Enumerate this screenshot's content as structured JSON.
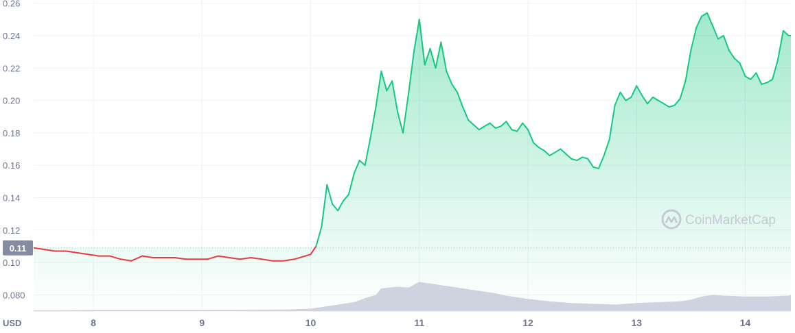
{
  "chart_data": {
    "type": "area",
    "currency_label": "USD",
    "current_price_label": "0.11",
    "current_price": 0.109,
    "watermark": "CoinMarketCap",
    "ylim": [
      0.07,
      0.262
    ],
    "xlim": [
      7.45,
      14.42
    ],
    "y_ticks": [
      {
        "value": 0.26,
        "label": "0.26"
      },
      {
        "value": 0.24,
        "label": "0.24"
      },
      {
        "value": 0.22,
        "label": "0.22"
      },
      {
        "value": 0.2,
        "label": "0.20"
      },
      {
        "value": 0.18,
        "label": "0.18"
      },
      {
        "value": 0.16,
        "label": "0.16"
      },
      {
        "value": 0.14,
        "label": "0.14"
      },
      {
        "value": 0.12,
        "label": "0.12"
      },
      {
        "value": 0.1,
        "label": "0.10"
      },
      {
        "value": 0.08,
        "label": "0.080"
      }
    ],
    "x_ticks": [
      {
        "value": 8,
        "label": "8"
      },
      {
        "value": 9,
        "label": "9"
      },
      {
        "value": 10,
        "label": "10"
      },
      {
        "value": 11,
        "label": "11"
      },
      {
        "value": 12,
        "label": "12"
      },
      {
        "value": 13,
        "label": "13"
      },
      {
        "value": 14,
        "label": "14"
      }
    ],
    "colors": {
      "up": "#16c784",
      "down": "#ea3943",
      "volume": "#cfd3e0",
      "grid": "#eff2f5",
      "badge": "#858ca2"
    },
    "grid": true,
    "series": [
      {
        "x": [
          7.45,
          7.55,
          7.65,
          7.75,
          7.85,
          7.95,
          8.05,
          8.15,
          8.25,
          8.35,
          8.45,
          8.55,
          8.65,
          8.75,
          8.85,
          8.95,
          9.05,
          9.15,
          9.25,
          9.35,
          9.45,
          9.55,
          9.65,
          9.75,
          9.85,
          9.95,
          10.0,
          10.05,
          10.1,
          10.15,
          10.2,
          10.25,
          10.3,
          10.35,
          10.4,
          10.45,
          10.5,
          10.55,
          10.6,
          10.65,
          10.7,
          10.75,
          10.8,
          10.85,
          10.9,
          10.95,
          11.0,
          11.05,
          11.1,
          11.15,
          11.2,
          11.25,
          11.3,
          11.35,
          11.4,
          11.45,
          11.5,
          11.55,
          11.6,
          11.65,
          11.7,
          11.75,
          11.8,
          11.85,
          11.9,
          11.95,
          12.0,
          12.05,
          12.1,
          12.15,
          12.2,
          12.25,
          12.3,
          12.35,
          12.4,
          12.45,
          12.5,
          12.55,
          12.6,
          12.65,
          12.7,
          12.75,
          12.8,
          12.85,
          12.9,
          12.95,
          13.0,
          13.05,
          13.1,
          13.15,
          13.2,
          13.25,
          13.3,
          13.35,
          13.4,
          13.45,
          13.5,
          13.55,
          13.6,
          13.65,
          13.7,
          13.75,
          13.8,
          13.85,
          13.9,
          13.95,
          14.0,
          14.05,
          14.1,
          14.15,
          14.2,
          14.25,
          14.3,
          14.35,
          14.4,
          14.42
        ],
        "y": [
          0.109,
          0.108,
          0.107,
          0.107,
          0.106,
          0.105,
          0.104,
          0.104,
          0.102,
          0.101,
          0.104,
          0.103,
          0.103,
          0.103,
          0.102,
          0.102,
          0.102,
          0.104,
          0.103,
          0.102,
          0.103,
          0.102,
          0.101,
          0.101,
          0.102,
          0.104,
          0.105,
          0.11,
          0.122,
          0.148,
          0.136,
          0.132,
          0.138,
          0.142,
          0.155,
          0.163,
          0.16,
          0.177,
          0.196,
          0.218,
          0.206,
          0.212,
          0.193,
          0.18,
          0.204,
          0.23,
          0.25,
          0.222,
          0.232,
          0.22,
          0.236,
          0.218,
          0.21,
          0.205,
          0.196,
          0.188,
          0.185,
          0.182,
          0.184,
          0.186,
          0.183,
          0.184,
          0.187,
          0.182,
          0.181,
          0.186,
          0.182,
          0.174,
          0.171,
          0.169,
          0.166,
          0.168,
          0.17,
          0.167,
          0.164,
          0.163,
          0.165,
          0.164,
          0.159,
          0.158,
          0.166,
          0.176,
          0.197,
          0.205,
          0.2,
          0.202,
          0.209,
          0.203,
          0.198,
          0.202,
          0.2,
          0.198,
          0.196,
          0.197,
          0.201,
          0.212,
          0.231,
          0.245,
          0.252,
          0.254,
          0.246,
          0.238,
          0.24,
          0.231,
          0.226,
          0.223,
          0.215,
          0.213,
          0.217,
          0.21,
          0.211,
          0.213,
          0.225,
          0.243,
          0.24,
          0.24
        ]
      }
    ],
    "volume": {
      "x": [
        7.45,
        7.6,
        7.8,
        8.0,
        8.5,
        9.0,
        9.5,
        9.8,
        10.0,
        10.2,
        10.4,
        10.5,
        10.6,
        10.65,
        10.8,
        10.9,
        11.0,
        11.1,
        11.2,
        11.3,
        11.4,
        11.5,
        11.6,
        11.7,
        11.8,
        11.9,
        12.0,
        12.2,
        12.4,
        12.6,
        12.8,
        13.0,
        13.2,
        13.4,
        13.5,
        13.6,
        13.7,
        13.8,
        14.0,
        14.2,
        14.4,
        14.42
      ],
      "y": [
        0.0705,
        0.0705,
        0.0706,
        0.0707,
        0.0707,
        0.0707,
        0.0708,
        0.071,
        0.0715,
        0.0735,
        0.0755,
        0.078,
        0.08,
        0.084,
        0.085,
        0.0845,
        0.088,
        0.087,
        0.086,
        0.085,
        0.084,
        0.083,
        0.082,
        0.081,
        0.0795,
        0.0785,
        0.0775,
        0.076,
        0.075,
        0.0745,
        0.074,
        0.075,
        0.0755,
        0.076,
        0.077,
        0.079,
        0.08,
        0.0795,
        0.079,
        0.079,
        0.0795,
        0.08
      ]
    }
  }
}
